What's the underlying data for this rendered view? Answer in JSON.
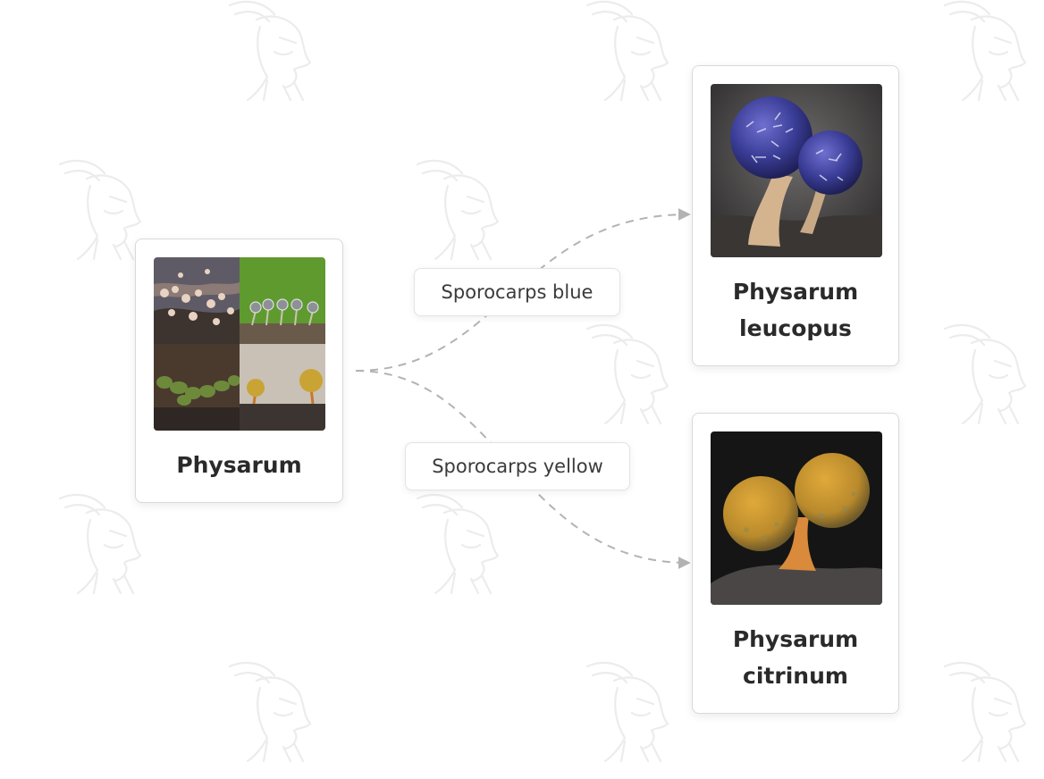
{
  "nodes": {
    "root": {
      "title": "Physarum"
    },
    "leucopus": {
      "title_line1": "Physarum",
      "title_line2": "leucopus"
    },
    "citrinum": {
      "title_line1": "Physarum",
      "title_line2": "citrinum"
    }
  },
  "edges": {
    "blue": {
      "label": "Sporocarps blue"
    },
    "yellow": {
      "label": "Sporocarps yellow"
    }
  },
  "colors": {
    "edge": "#b3b3b3",
    "watermark": "#ececec",
    "card_border": "#d9d9d9"
  },
  "icons": {
    "watermark": "bug-mascot-watermark-icon",
    "arrow": "arrowhead-icon"
  }
}
